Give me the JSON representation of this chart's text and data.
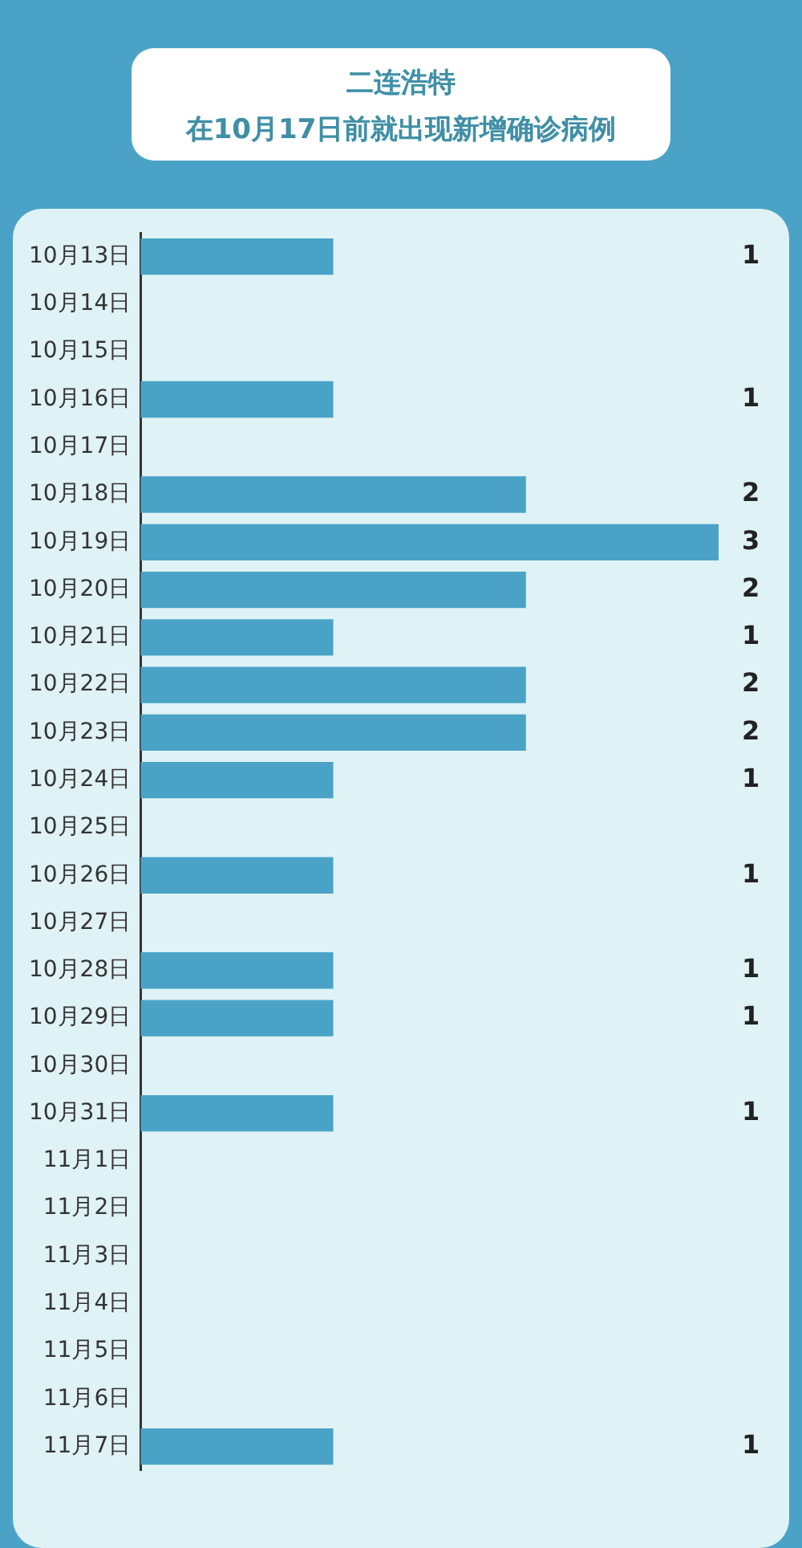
{
  "chart_data": {
    "type": "bar",
    "orientation": "horizontal",
    "title": "二连浩特",
    "subtitle": "在10月17日前就出现新增确诊病例",
    "categories": [
      "10月13日",
      "10月14日",
      "10月15日",
      "10月16日",
      "10月17日",
      "10月18日",
      "10月19日",
      "10月20日",
      "10月21日",
      "10月22日",
      "10月23日",
      "10月24日",
      "10月25日",
      "10月26日",
      "10月27日",
      "10月28日",
      "10月29日",
      "10月30日",
      "10月31日",
      "11月1日",
      "11月2日",
      "11月3日",
      "11月4日",
      "11月5日",
      "11月6日",
      "11月7日"
    ],
    "values": [
      1,
      0,
      0,
      1,
      0,
      2,
      3,
      2,
      1,
      2,
      2,
      1,
      0,
      1,
      0,
      1,
      1,
      0,
      1,
      0,
      0,
      0,
      0,
      0,
      0,
      1
    ],
    "value_labels": [
      "1",
      null,
      null,
      "1",
      null,
      "2",
      "3",
      "2",
      "1",
      "2",
      "2",
      "1",
      null,
      "1",
      null,
      "1",
      "1",
      null,
      "1",
      null,
      null,
      null,
      null,
      null,
      null,
      "1"
    ],
    "color": "#4aa3c6",
    "xlim": [
      0,
      3
    ],
    "tick_labels": "y"
  }
}
